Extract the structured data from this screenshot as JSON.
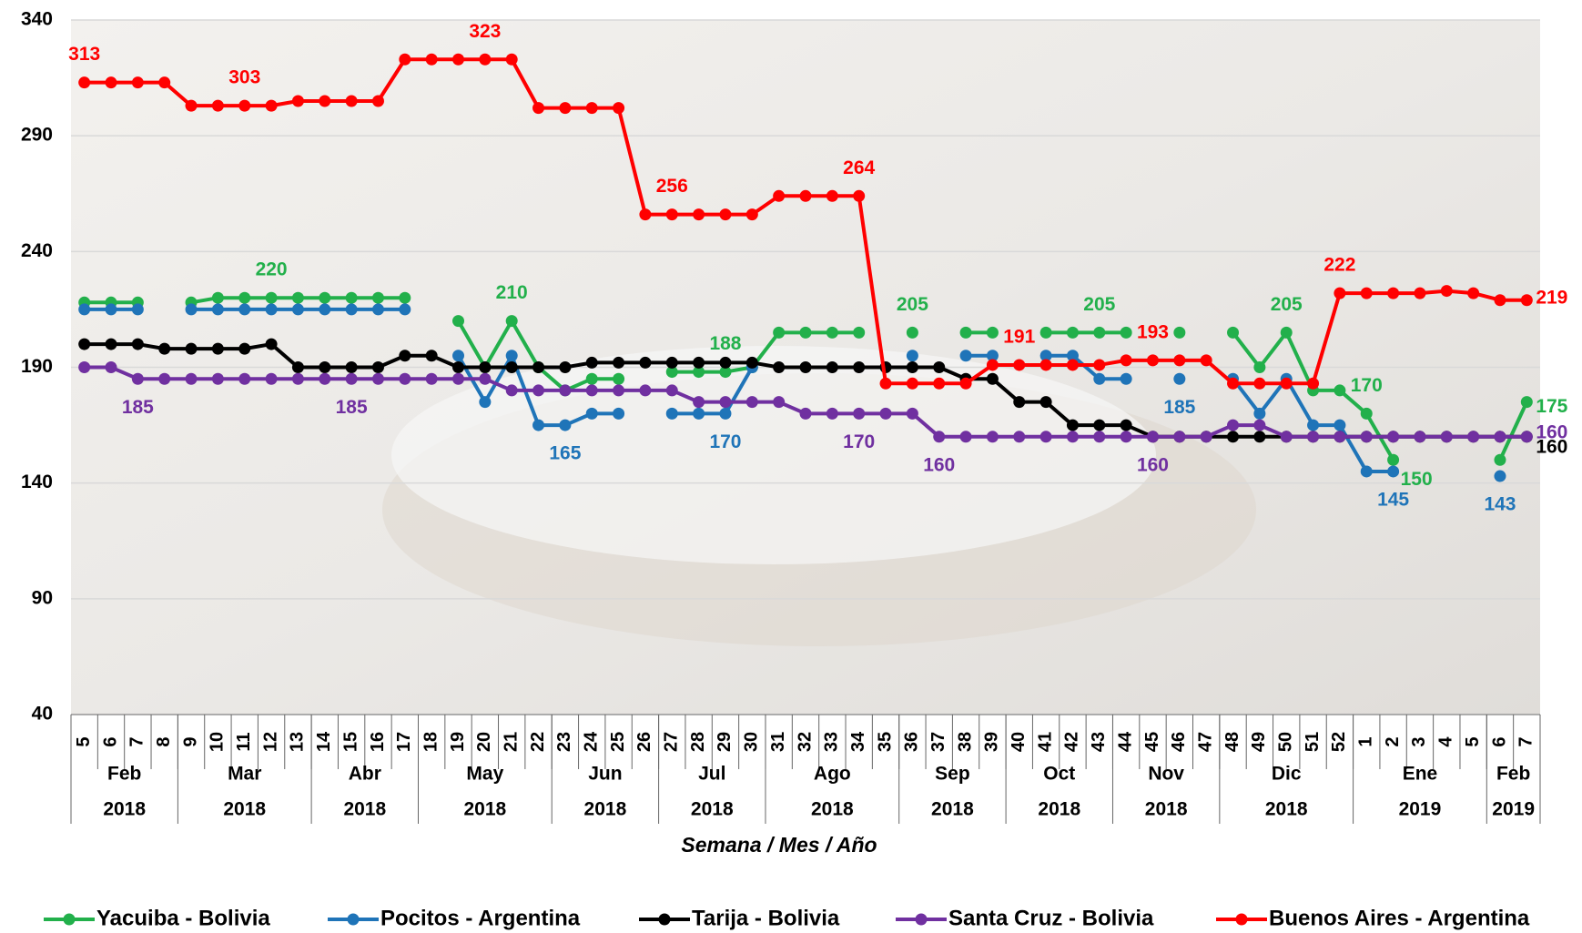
{
  "chart_data": {
    "type": "line",
    "x_label": "Semana / Mes / Año",
    "categories": [
      "5",
      "6",
      "7",
      "8",
      "9",
      "10",
      "11",
      "12",
      "13",
      "14",
      "15",
      "16",
      "17",
      "18",
      "19",
      "20",
      "21",
      "22",
      "23",
      "24",
      "25",
      "26",
      "27",
      "28",
      "29",
      "30",
      "31",
      "32",
      "33",
      "34",
      "35",
      "36",
      "37",
      "38",
      "39",
      "40",
      "41",
      "42",
      "43",
      "44",
      "45",
      "46",
      "47",
      "48",
      "49",
      "50",
      "51",
      "52",
      "1",
      "2",
      "3",
      "4",
      "5",
      "6",
      "7"
    ],
    "groups": [
      {
        "month": "Feb",
        "year": "2018",
        "weeks": 4
      },
      {
        "month": "Mar",
        "year": "2018",
        "weeks": 5
      },
      {
        "month": "Abr",
        "year": "2018",
        "weeks": 4
      },
      {
        "month": "May",
        "year": "2018",
        "weeks": 5
      },
      {
        "month": "Jun",
        "year": "2018",
        "weeks": 4
      },
      {
        "month": "Jul",
        "year": "2018",
        "weeks": 4
      },
      {
        "month": "Ago",
        "year": "2018",
        "weeks": 5
      },
      {
        "month": "Sep",
        "year": "2018",
        "weeks": 4
      },
      {
        "month": "Oct",
        "year": "2018",
        "weeks": 4
      },
      {
        "month": "Nov",
        "year": "2018",
        "weeks": 4
      },
      {
        "month": "Dic",
        "year": "2018",
        "weeks": 5
      },
      {
        "month": "Ene",
        "year": "2019",
        "weeks": 5
      },
      {
        "month": "Feb",
        "year": "2019",
        "weeks": 2
      }
    ],
    "ylim": [
      40,
      340
    ],
    "yticks": [
      40,
      90,
      140,
      190,
      240,
      290,
      340
    ],
    "grid": true,
    "legend": "bottom",
    "series": [
      {
        "name": "Yacuiba - Bolivia",
        "color": "#22b04b",
        "labeled_points": [
          7,
          16,
          24,
          31,
          38,
          45,
          48,
          49,
          54
        ],
        "values": [
          218,
          218,
          218,
          null,
          218,
          220,
          220,
          220,
          220,
          220,
          220,
          220,
          220,
          null,
          210,
          190,
          210,
          190,
          180,
          185,
          185,
          null,
          188,
          188,
          188,
          190,
          205,
          205,
          205,
          205,
          null,
          205,
          null,
          205,
          205,
          null,
          205,
          205,
          205,
          205,
          null,
          205,
          null,
          205,
          190,
          205,
          180,
          180,
          170,
          150,
          null,
          null,
          null,
          150,
          175
        ]
      },
      {
        "name": "Pocitos - Argentina",
        "color": "#1f74b8",
        "labeled_points": [
          18,
          24,
          41,
          49,
          53
        ],
        "values": [
          215,
          215,
          215,
          null,
          215,
          215,
          215,
          215,
          215,
          215,
          215,
          215,
          215,
          null,
          195,
          175,
          195,
          165,
          165,
          170,
          170,
          null,
          170,
          170,
          170,
          190,
          null,
          null,
          null,
          null,
          null,
          195,
          null,
          195,
          195,
          null,
          195,
          195,
          185,
          185,
          null,
          185,
          null,
          185,
          170,
          185,
          165,
          165,
          145,
          145,
          null,
          null,
          null,
          143,
          null
        ]
      },
      {
        "name": "Tarija - Bolivia",
        "color": "#000000",
        "labeled_points": [
          54
        ],
        "values": [
          200,
          200,
          200,
          198,
          198,
          198,
          198,
          200,
          190,
          190,
          190,
          190,
          195,
          195,
          190,
          190,
          190,
          190,
          190,
          192,
          192,
          192,
          192,
          192,
          192,
          192,
          190,
          190,
          190,
          190,
          190,
          190,
          190,
          185,
          185,
          175,
          175,
          165,
          165,
          165,
          160,
          160,
          160,
          160,
          160,
          160,
          160,
          160,
          160,
          160,
          160,
          160,
          160,
          160,
          160
        ]
      },
      {
        "name": "Santa Cruz - Bolivia",
        "color": "#7030a0",
        "labeled_points": [
          2,
          10,
          29,
          32,
          40,
          54
        ],
        "values": [
          190,
          190,
          185,
          185,
          185,
          185,
          185,
          185,
          185,
          185,
          185,
          185,
          185,
          185,
          185,
          185,
          180,
          180,
          180,
          180,
          180,
          180,
          180,
          175,
          175,
          175,
          175,
          170,
          170,
          170,
          170,
          170,
          160,
          160,
          160,
          160,
          160,
          160,
          160,
          160,
          160,
          160,
          160,
          165,
          165,
          160,
          160,
          160,
          160,
          160,
          160,
          160,
          160,
          160,
          160
        ]
      },
      {
        "name": "Buenos Aires - Argentina",
        "color": "#ff0000",
        "labeled_points": [
          0,
          6,
          15,
          22,
          29,
          35,
          40,
          47,
          54
        ],
        "values": [
          313,
          313,
          313,
          313,
          303,
          303,
          303,
          303,
          305,
          305,
          305,
          305,
          323,
          323,
          323,
          323,
          323,
          302,
          302,
          302,
          302,
          256,
          256,
          256,
          256,
          256,
          264,
          264,
          264,
          264,
          183,
          183,
          183,
          183,
          191,
          191,
          191,
          191,
          191,
          193,
          193,
          193,
          193,
          183,
          183,
          183,
          183,
          222,
          222,
          222,
          222,
          223,
          222,
          219,
          219
        ]
      }
    ]
  }
}
